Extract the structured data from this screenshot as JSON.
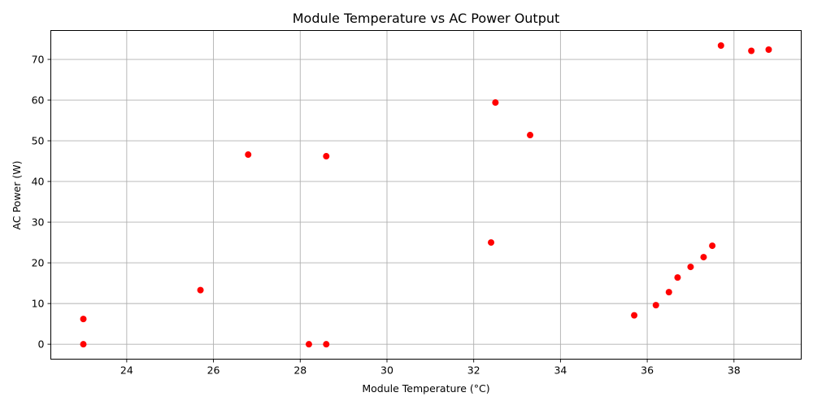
{
  "chart_data": {
    "type": "scatter",
    "title": "Module Temperature vs AC Power Output",
    "xlabel": "Module Temperature (°C)",
    "ylabel": "AC Power (W)",
    "xlim": [
      22.25,
      39.55
    ],
    "ylim": [
      -3.67,
      77.1
    ],
    "xticks": [
      24,
      26,
      28,
      30,
      32,
      34,
      36,
      38
    ],
    "yticks": [
      0,
      10,
      20,
      30,
      40,
      50,
      60,
      70
    ],
    "grid": true,
    "marker_color": "#ff0000",
    "points": [
      {
        "x": 23.0,
        "y": 0.0
      },
      {
        "x": 23.0,
        "y": 6.2
      },
      {
        "x": 25.7,
        "y": 13.3
      },
      {
        "x": 26.8,
        "y": 46.6
      },
      {
        "x": 28.2,
        "y": 0.0
      },
      {
        "x": 28.6,
        "y": 0.0
      },
      {
        "x": 28.6,
        "y": 46.2
      },
      {
        "x": 32.4,
        "y": 25.0
      },
      {
        "x": 32.5,
        "y": 59.4
      },
      {
        "x": 33.3,
        "y": 51.4
      },
      {
        "x": 35.7,
        "y": 7.1
      },
      {
        "x": 36.2,
        "y": 9.6
      },
      {
        "x": 36.5,
        "y": 12.8
      },
      {
        "x": 36.7,
        "y": 16.4
      },
      {
        "x": 37.0,
        "y": 19.0
      },
      {
        "x": 37.3,
        "y": 21.4
      },
      {
        "x": 37.5,
        "y": 24.2
      },
      {
        "x": 37.7,
        "y": 73.4
      },
      {
        "x": 38.4,
        "y": 72.1
      },
      {
        "x": 38.8,
        "y": 72.4
      }
    ]
  }
}
